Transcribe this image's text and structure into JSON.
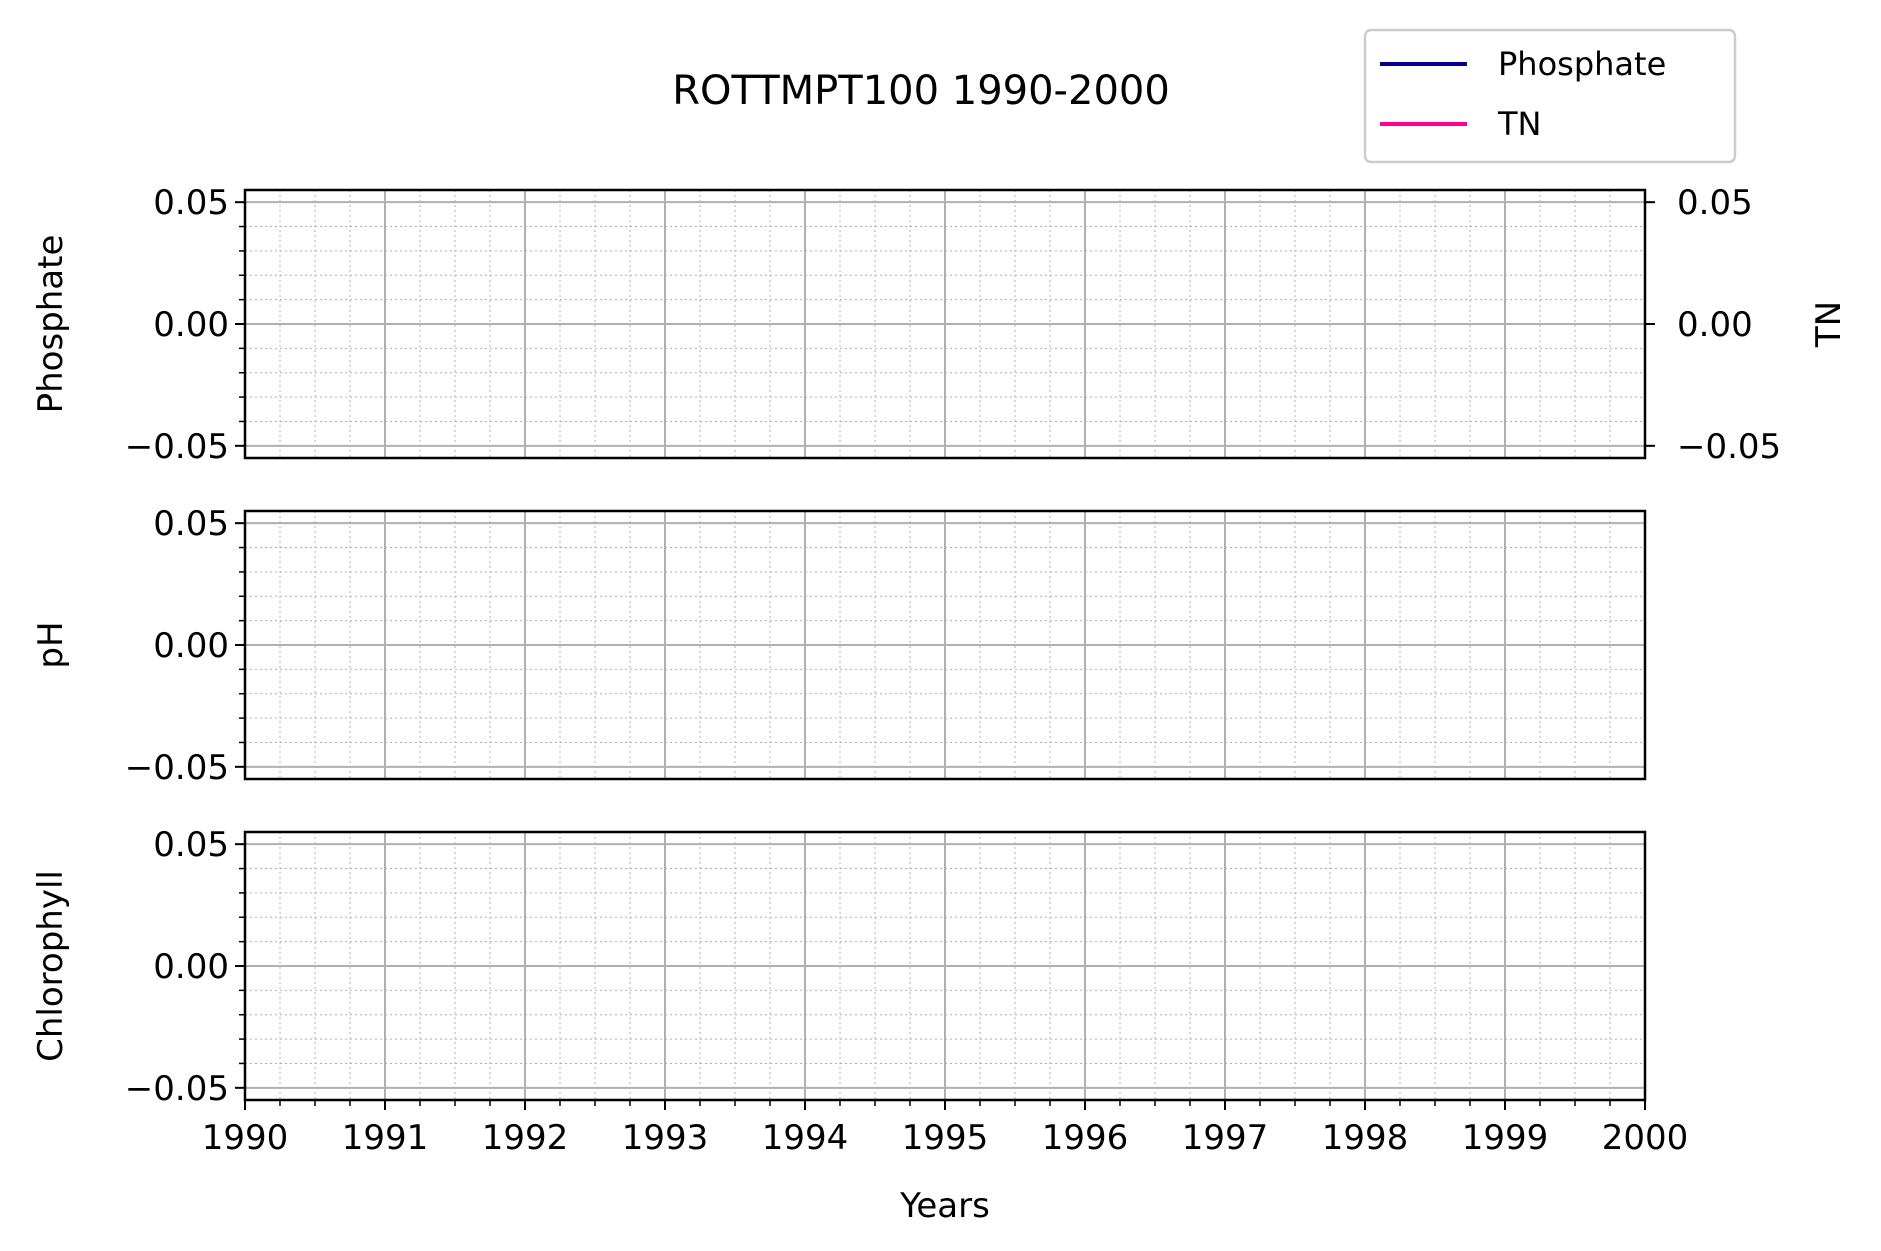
{
  "chart_data": {
    "title": "ROTTMPT100 1990-2000",
    "xlabel": "Years",
    "x_ticks": [
      "1990",
      "1991",
      "1992",
      "1993",
      "1994",
      "1995",
      "1996",
      "1997",
      "1998",
      "1999",
      "2000"
    ],
    "xlim": [
      1990,
      2000
    ],
    "grid": true,
    "legend": {
      "placement": "top-right",
      "entries": [
        {
          "name": "Phosphate",
          "color": "#000099"
        },
        {
          "name": "TN",
          "color": "#ff0099"
        }
      ]
    },
    "panels": [
      {
        "type": "line",
        "ylabel": "Phosphate",
        "ylim": [
          -0.055,
          0.055
        ],
        "y_ticks": [
          "−0.05",
          "0.00",
          "0.05"
        ],
        "secondary_axis": {
          "ylabel": "TN",
          "ylim": [
            -0.055,
            0.055
          ],
          "y_ticks": [
            "−0.05",
            "0.00",
            "0.05"
          ]
        },
        "series": [
          {
            "name": "Phosphate",
            "values": []
          },
          {
            "name": "TN",
            "values": []
          }
        ]
      },
      {
        "type": "line",
        "ylabel": "pH",
        "ylim": [
          -0.055,
          0.055
        ],
        "y_ticks": [
          "−0.05",
          "0.00",
          "0.05"
        ],
        "series": []
      },
      {
        "type": "line",
        "ylabel": "Chlorophyll",
        "ylim": [
          -0.055,
          0.055
        ],
        "y_ticks": [
          "−0.05",
          "0.00",
          "0.05"
        ],
        "series": []
      }
    ]
  }
}
